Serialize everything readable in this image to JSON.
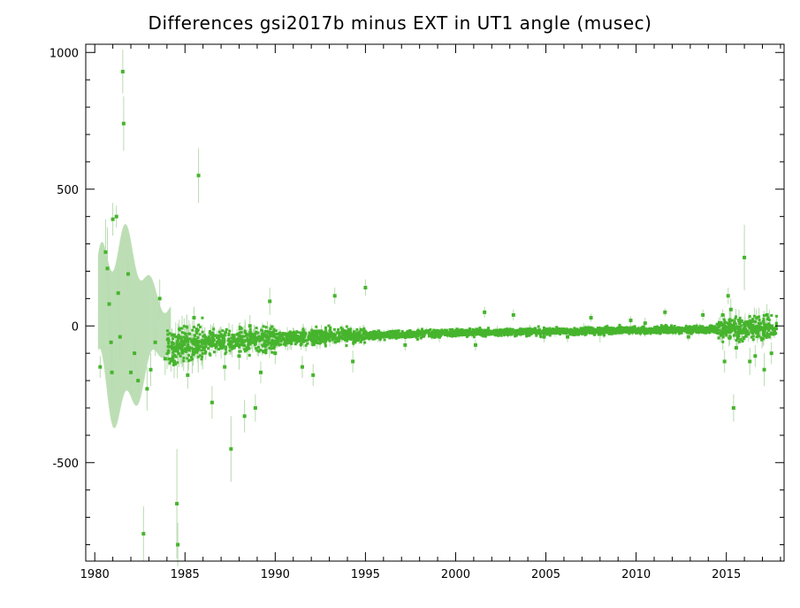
{
  "chart_data": {
    "type": "scatter",
    "title": "Differences gsi2017b minus EXT in UT1 angle   (musec)",
    "xlabel": "",
    "ylabel": "",
    "xlim": [
      1979.5,
      2018.2
    ],
    "ylim": [
      -860,
      1030
    ],
    "xticks": [
      "1980",
      "1985",
      "1990",
      "1995",
      "2000",
      "2005",
      "2010",
      "2015"
    ],
    "yticks": [
      "1000",
      "500",
      "0",
      "-500"
    ],
    "grid": false,
    "colors": {
      "marker": "#46b42d",
      "errorbar": "#b8dcb0",
      "axis": "#000000"
    },
    "series": [
      {
        "points": [
          [
            1980.3,
            -150,
            40
          ],
          [
            1980.6,
            270,
            120
          ],
          [
            1980.7,
            210,
            150
          ],
          [
            1980.8,
            80,
            120
          ],
          [
            1980.9,
            -60,
            100
          ],
          [
            1980.95,
            -170,
            90
          ],
          [
            1981.0,
            390,
            60
          ],
          [
            1981.2,
            400,
            40
          ],
          [
            1981.3,
            120,
            100
          ],
          [
            1981.4,
            -40,
            80
          ],
          [
            1981.55,
            930,
            80
          ],
          [
            1981.6,
            740,
            100
          ],
          [
            1981.85,
            190,
            60
          ],
          [
            1982.0,
            -170,
            80
          ],
          [
            1982.2,
            -100,
            60
          ],
          [
            1982.4,
            -200,
            40
          ],
          [
            1982.7,
            -760,
            100
          ],
          [
            1982.9,
            -230,
            80
          ],
          [
            1983.1,
            -160,
            60
          ],
          [
            1983.35,
            -60,
            50
          ],
          [
            1983.6,
            100,
            70
          ],
          [
            1983.9,
            -120,
            60
          ],
          [
            1984.4,
            -130,
            60
          ],
          [
            1984.55,
            -650,
            200
          ],
          [
            1984.6,
            -800,
            80
          ],
          [
            1985.15,
            -180,
            50
          ],
          [
            1985.5,
            30,
            40
          ],
          [
            1985.75,
            550,
            100
          ],
          [
            1986.0,
            -60,
            40
          ],
          [
            1986.5,
            -280,
            60
          ],
          [
            1987.0,
            -80,
            40
          ],
          [
            1987.2,
            -150,
            50
          ],
          [
            1987.55,
            -450,
            120
          ],
          [
            1988.0,
            -110,
            50
          ],
          [
            1988.3,
            -330,
            60
          ],
          [
            1988.6,
            0,
            40
          ],
          [
            1988.9,
            -300,
            50
          ],
          [
            1989.2,
            -170,
            40
          ],
          [
            1989.7,
            90,
            50
          ],
          [
            1990.0,
            -100,
            40
          ],
          [
            1990.7,
            -60,
            30
          ],
          [
            1991.5,
            -150,
            40
          ],
          [
            1992.1,
            -180,
            40
          ],
          [
            1992.8,
            -50,
            30
          ],
          [
            1993.3,
            110,
            30
          ],
          [
            1993.9,
            -50,
            30
          ],
          [
            1994.3,
            -130,
            40
          ],
          [
            1995.0,
            140,
            30
          ],
          [
            1995.7,
            -40,
            20
          ],
          [
            1996.5,
            -30,
            20
          ],
          [
            1997.2,
            -70,
            20
          ],
          [
            1998.0,
            -30,
            20
          ],
          [
            1999.1,
            -40,
            20
          ],
          [
            2000.0,
            -25,
            20
          ],
          [
            2001.1,
            -70,
            20
          ],
          [
            2001.6,
            50,
            20
          ],
          [
            2002.3,
            -20,
            20
          ],
          [
            2003.2,
            40,
            20
          ],
          [
            2004.1,
            -15,
            20
          ],
          [
            2004.9,
            -40,
            20
          ],
          [
            2005.5,
            -20,
            20
          ],
          [
            2006.2,
            -40,
            20
          ],
          [
            2007.1,
            -10,
            20
          ],
          [
            2007.5,
            30,
            15
          ],
          [
            2008.0,
            -30,
            30
          ],
          [
            2009.0,
            -15,
            20
          ],
          [
            2009.7,
            20,
            15
          ],
          [
            2010.5,
            10,
            20
          ],
          [
            2011.2,
            -10,
            15
          ],
          [
            2011.6,
            50,
            15
          ],
          [
            2012.2,
            -20,
            15
          ],
          [
            2012.9,
            -40,
            15
          ],
          [
            2013.7,
            40,
            20
          ],
          [
            2014.4,
            -15,
            15
          ],
          [
            2014.8,
            40,
            20
          ],
          [
            2014.9,
            -130,
            40
          ],
          [
            2015.1,
            110,
            30
          ],
          [
            2015.25,
            60,
            40
          ],
          [
            2015.4,
            -300,
            50
          ],
          [
            2015.55,
            -80,
            40
          ],
          [
            2015.7,
            20,
            40
          ],
          [
            2016.0,
            250,
            120
          ],
          [
            2016.3,
            -130,
            50
          ],
          [
            2016.6,
            -110,
            40
          ],
          [
            2016.9,
            -5,
            30
          ],
          [
            2017.1,
            -160,
            60
          ],
          [
            2017.25,
            40,
            40
          ],
          [
            2017.5,
            -100,
            40
          ]
        ]
      }
    ]
  }
}
